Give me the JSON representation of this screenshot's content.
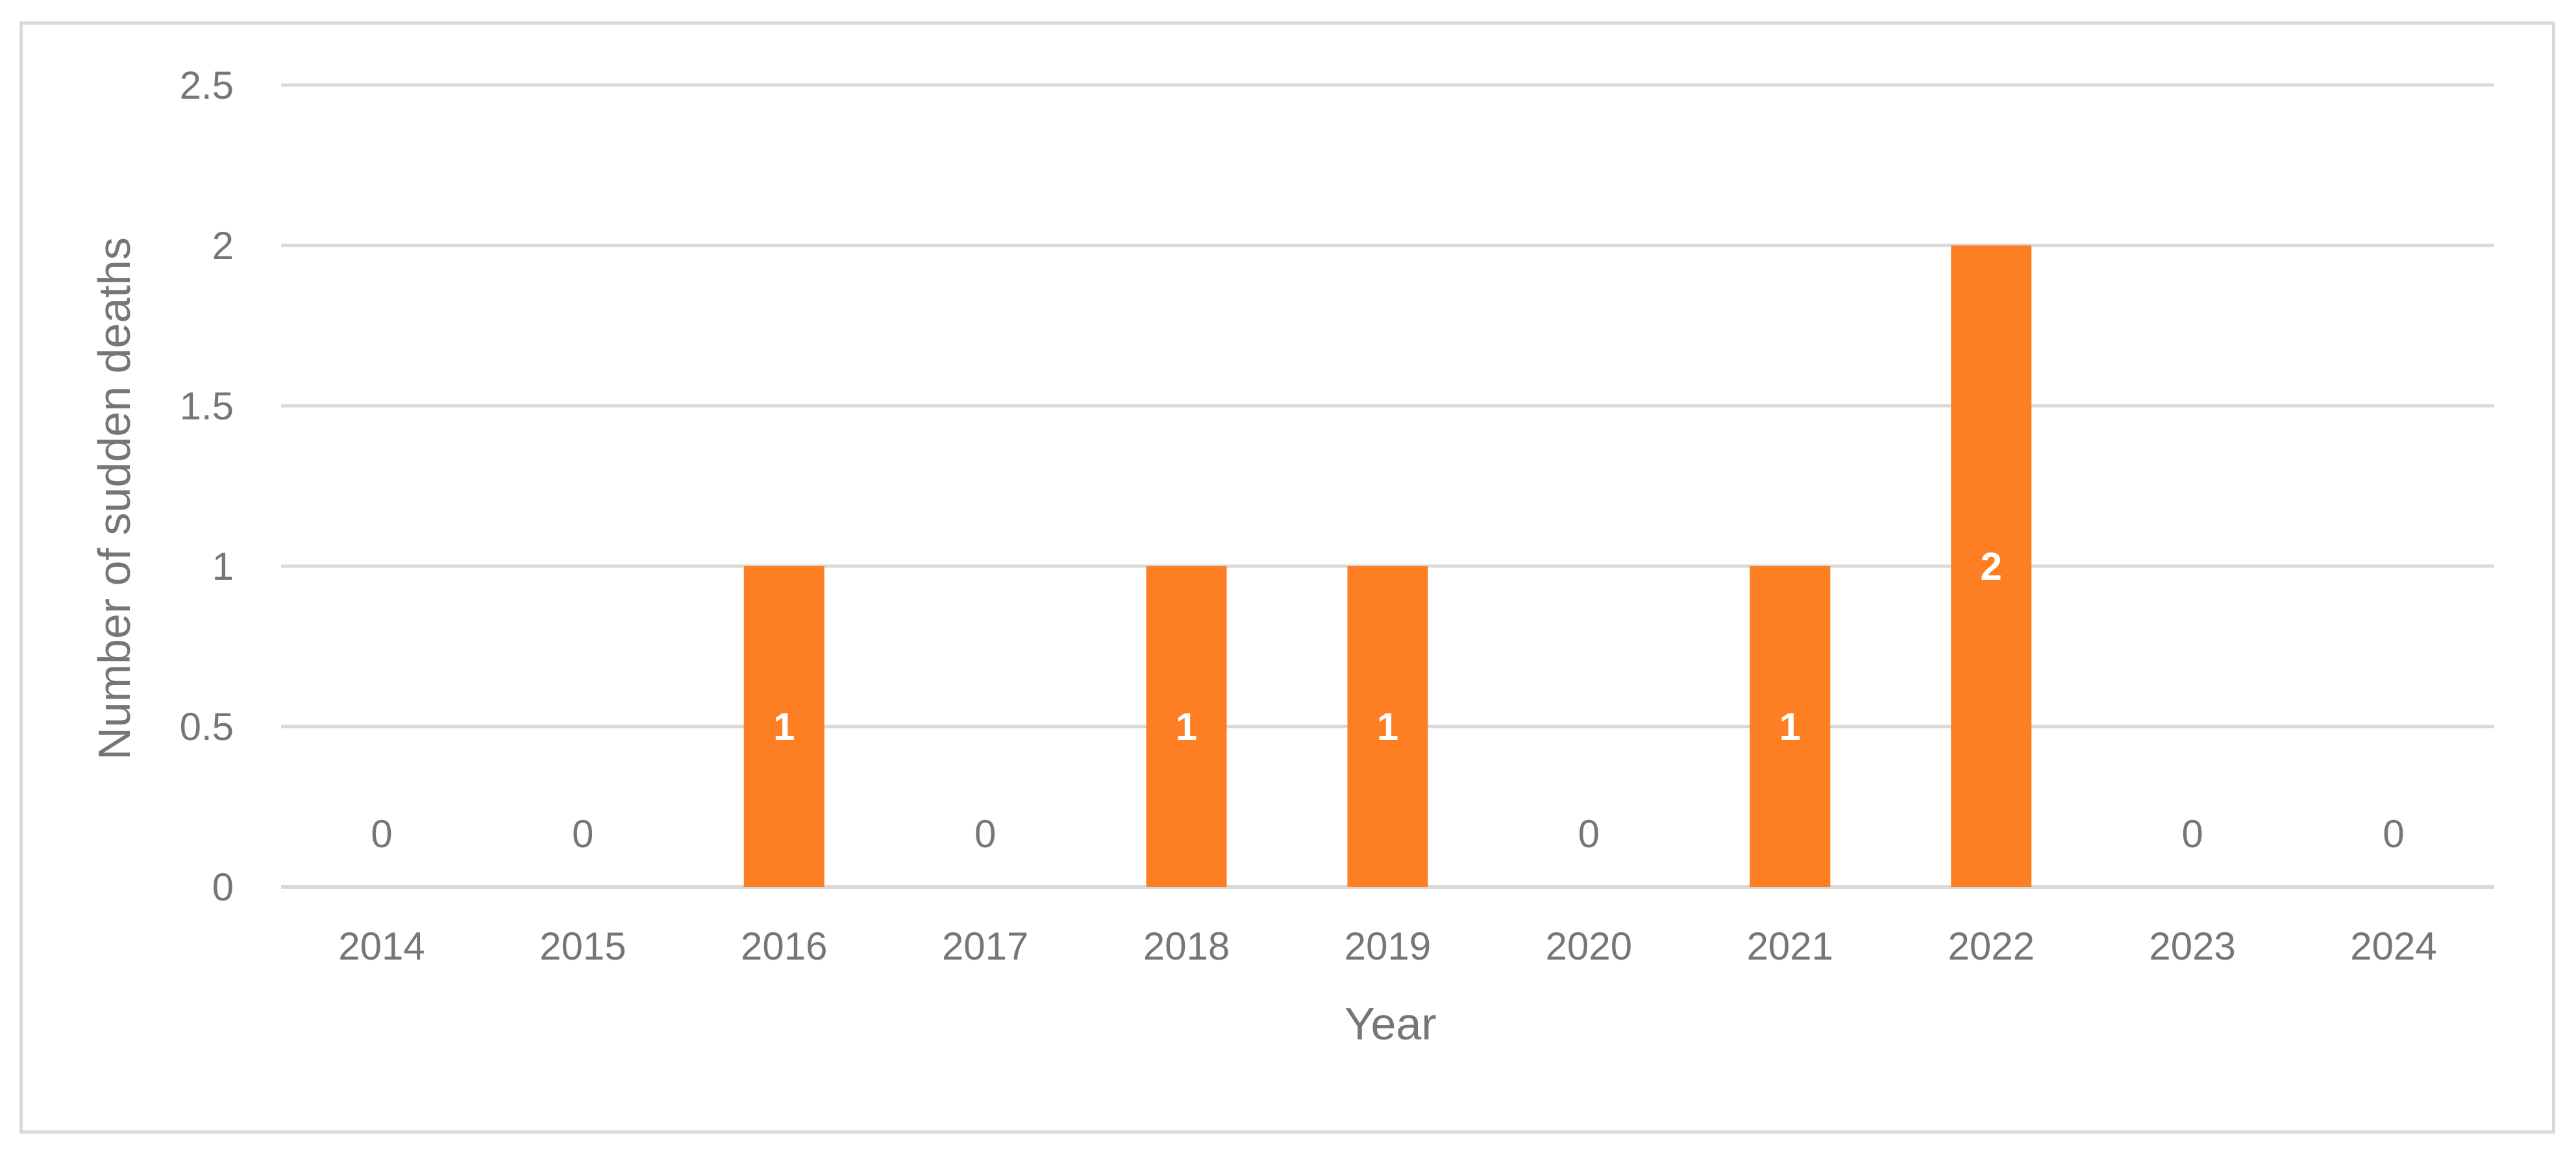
{
  "chart_data": {
    "type": "bar",
    "title": "",
    "xlabel": "Year",
    "ylabel": "Number of sudden deaths",
    "categories": [
      "2014",
      "2015",
      "2016",
      "2017",
      "2018",
      "2019",
      "2020",
      "2021",
      "2022",
      "2023",
      "2024"
    ],
    "values": [
      0,
      0,
      1,
      0,
      1,
      1,
      0,
      1,
      2,
      0,
      0
    ],
    "data_labels": [
      "0",
      "0",
      "1",
      "0",
      "1",
      "1",
      "0",
      "1",
      "2",
      "0",
      "0"
    ],
    "ylim": [
      0,
      2.5
    ],
    "yticks": [
      "0",
      "0.5",
      "1",
      "1.5",
      "2",
      "2.5"
    ],
    "grid": true,
    "legend": "none",
    "bar_color": "#fd7e23",
    "gridline_color": "#d9d9d9",
    "text_color": "#767676"
  }
}
